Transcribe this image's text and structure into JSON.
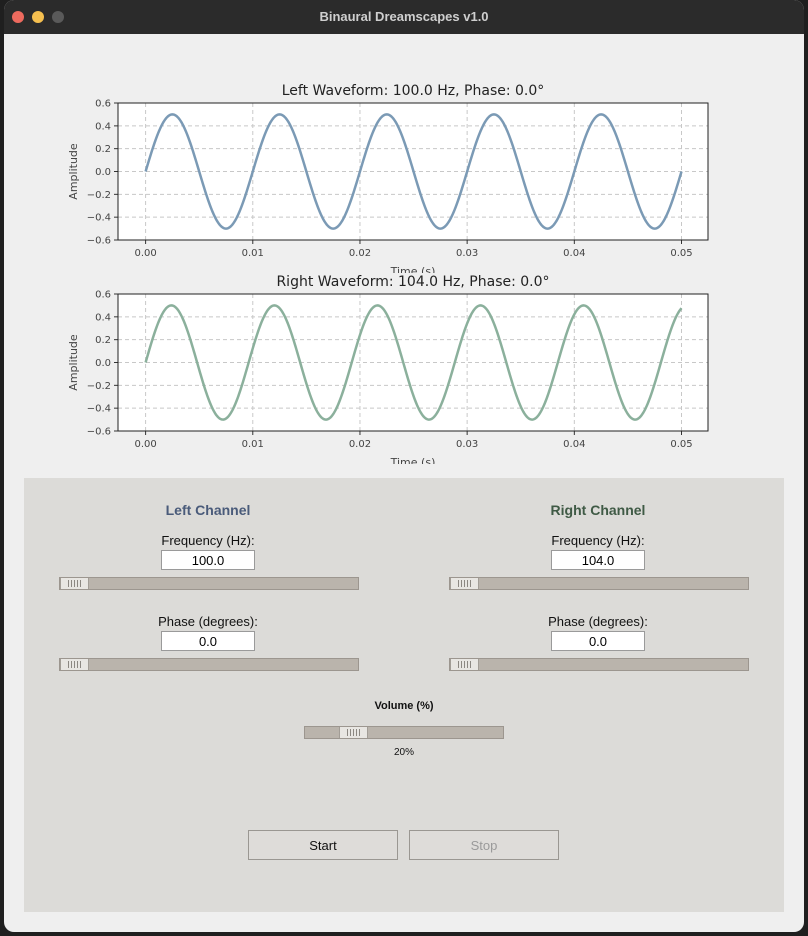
{
  "window": {
    "title": "Binaural Dreamscapes v1.0"
  },
  "plots": [
    {
      "title": "Left Waveform: 100.0 Hz, Phase: 0.0°",
      "ylabel": "Amplitude",
      "xlabel": "Time (s)",
      "color": "#7b9ab5",
      "frequency": 100,
      "phase": 0,
      "amplitude": 0.5
    },
    {
      "title": "Right Waveform: 104.0 Hz, Phase: 0.0°",
      "ylabel": "Amplitude",
      "xlabel": "Time (s)",
      "color": "#8bb09c",
      "frequency": 104,
      "phase": 0,
      "amplitude": 0.5
    }
  ],
  "chart_data": [
    {
      "type": "line",
      "title": "Left Waveform: 100.0 Hz, Phase: 0.0°",
      "xlabel": "Time (s)",
      "ylabel": "Amplitude",
      "xlim": [
        0,
        0.05
      ],
      "ylim": [
        -0.6,
        0.6
      ],
      "xticks": [
        "0.00",
        "0.01",
        "0.02",
        "0.03",
        "0.04",
        "0.05"
      ],
      "yticks": [
        "0.6",
        "0.4",
        "0.2",
        "0.0",
        "−0.2",
        "−0.4",
        "−0.6"
      ],
      "grid": true,
      "series": [
        {
          "function": "0.5*sin(2*pi*100*t)"
        }
      ]
    },
    {
      "type": "line",
      "title": "Right Waveform: 104.0 Hz, Phase: 0.0°",
      "xlabel": "Time (s)",
      "ylabel": "Amplitude",
      "xlim": [
        0,
        0.05
      ],
      "ylim": [
        -0.6,
        0.6
      ],
      "xticks": [
        "0.00",
        "0.01",
        "0.02",
        "0.03",
        "0.04",
        "0.05"
      ],
      "yticks": [
        "0.6",
        "0.4",
        "0.2",
        "0.0",
        "−0.2",
        "−0.4",
        "−0.6"
      ],
      "grid": true,
      "series": [
        {
          "function": "0.5*sin(2*pi*104*t)"
        }
      ]
    }
  ],
  "left": {
    "header": "Left Channel",
    "header_color": "#4a5b7a",
    "freq_label": "Frequency (Hz):",
    "freq_value": "100.0",
    "freq_slider_fraction": 0.0,
    "phase_label": "Phase (degrees):",
    "phase_value": "0.0",
    "phase_slider_fraction": 0.0
  },
  "right": {
    "header": "Right Channel",
    "header_color": "#3f5a45",
    "freq_label": "Frequency (Hz):",
    "freq_value": "104.0",
    "freq_slider_fraction": 0.0,
    "phase_label": "Phase (degrees):",
    "phase_value": "0.0",
    "phase_slider_fraction": 0.0
  },
  "volume": {
    "label": "Volume (%)",
    "value_text": "20%",
    "fraction": 0.2
  },
  "buttons": {
    "start": "Start",
    "stop": "Stop"
  }
}
